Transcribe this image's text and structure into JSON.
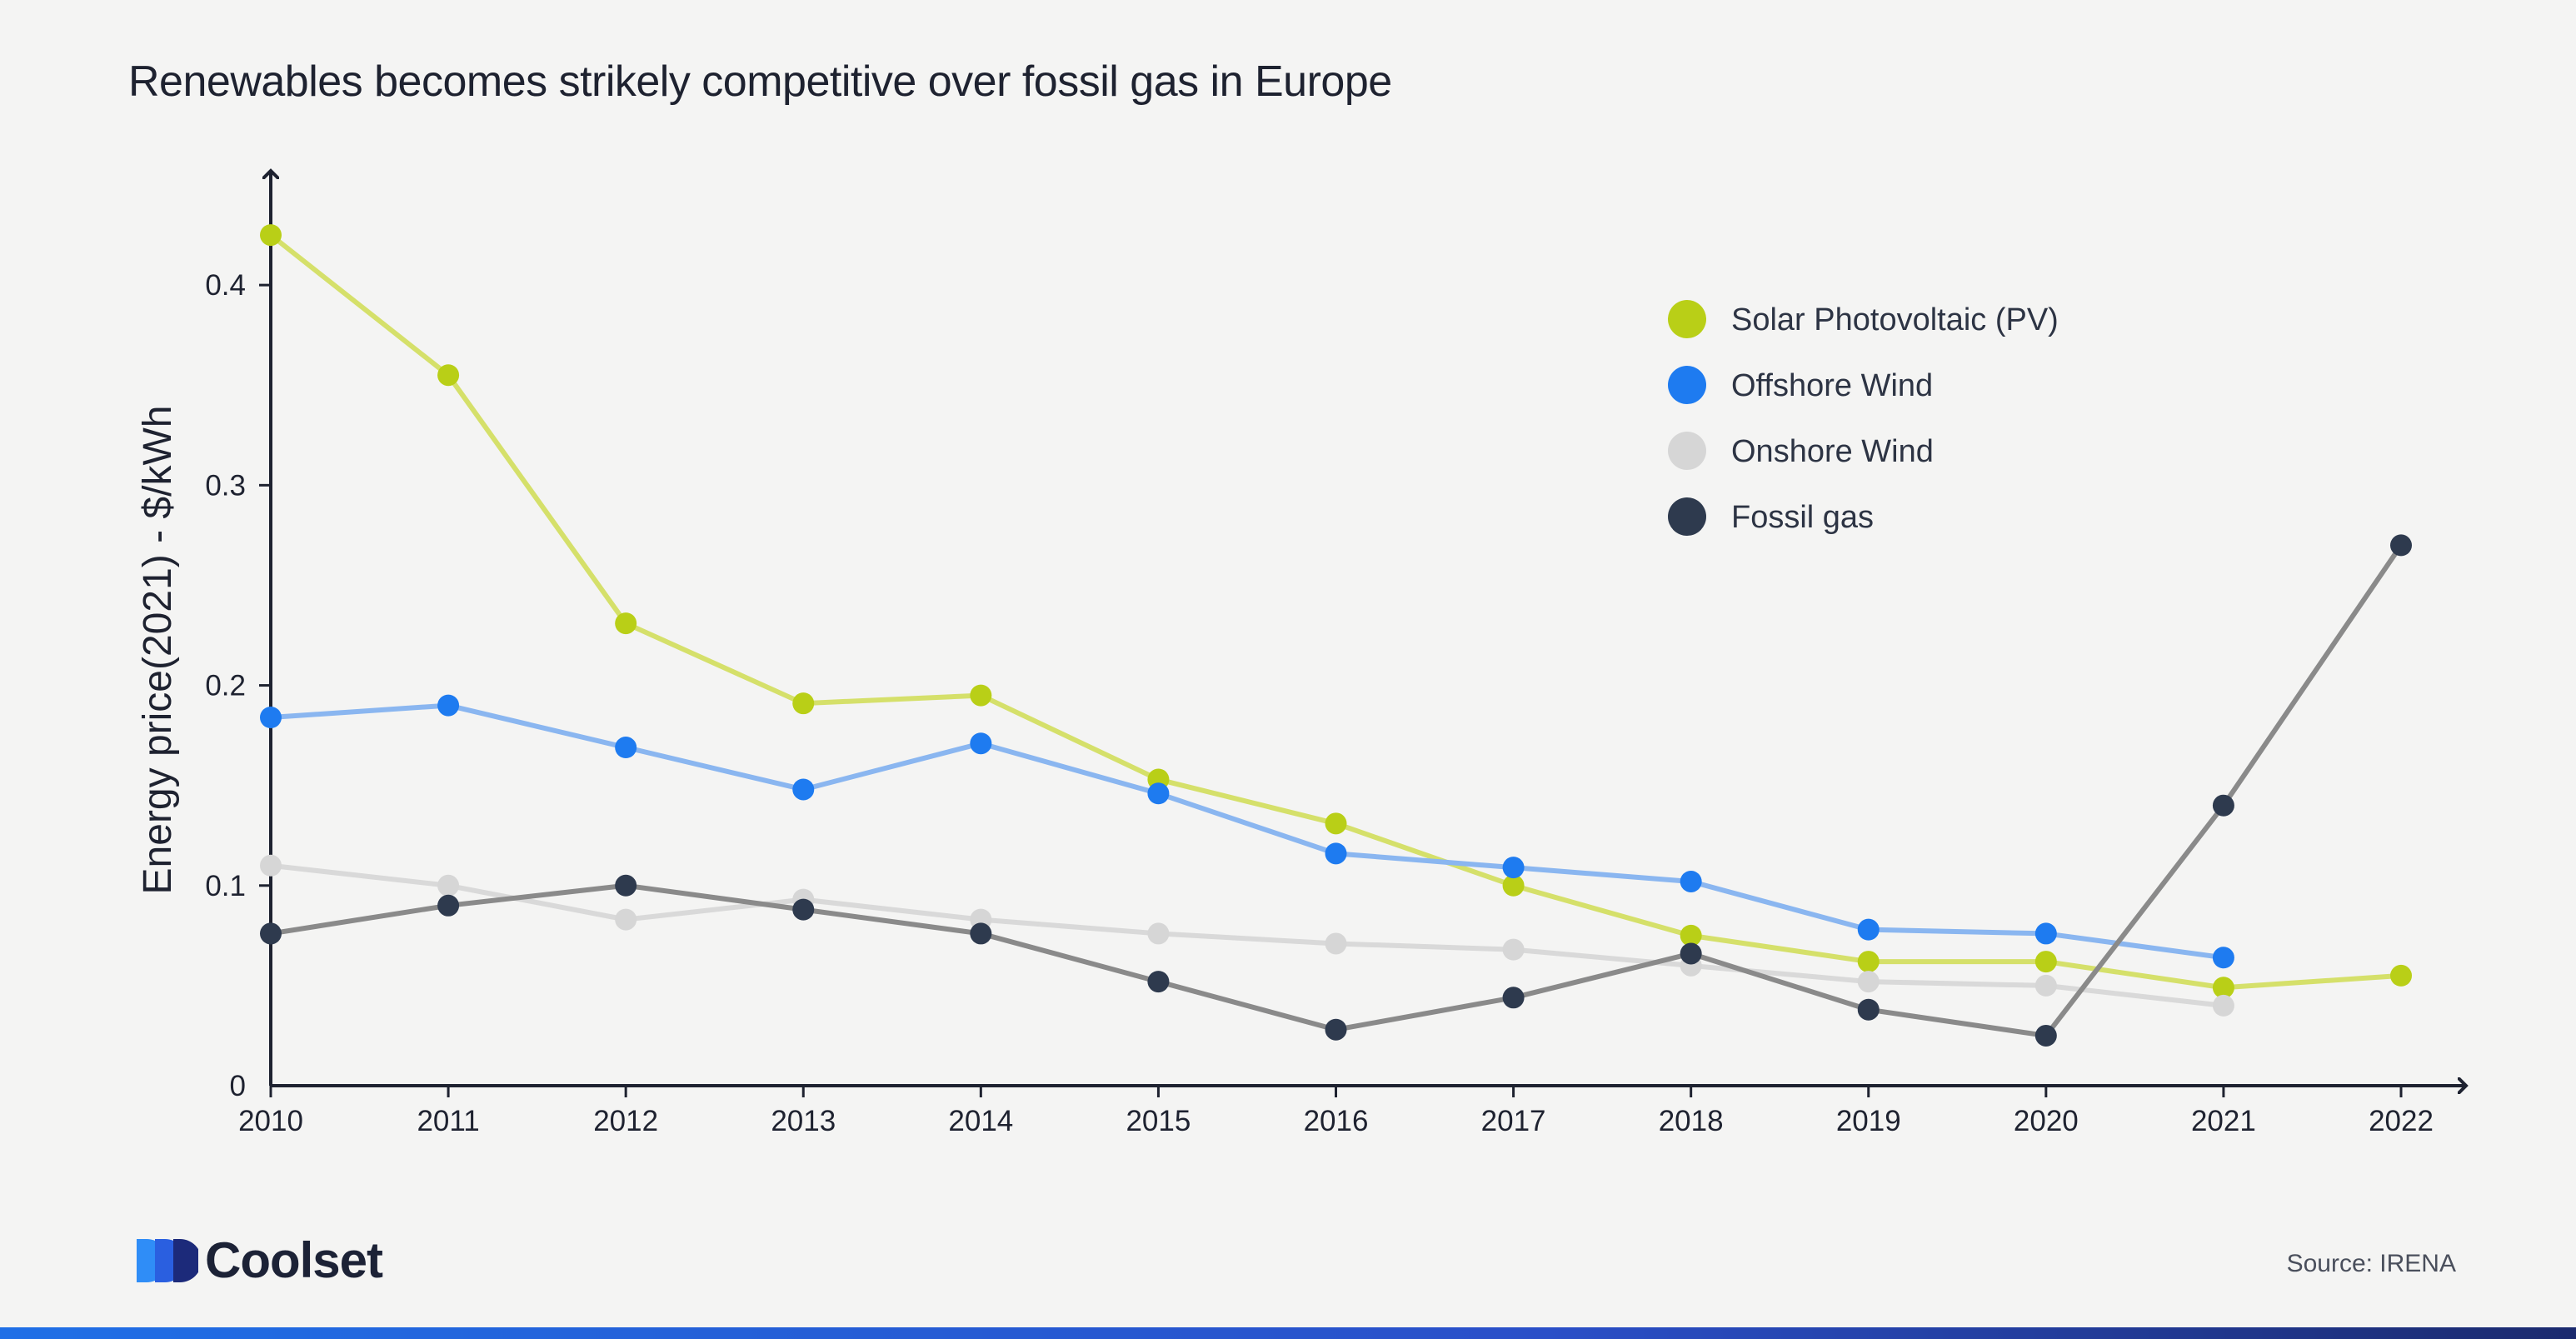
{
  "chart_data": {
    "type": "line",
    "title": "Renewables becomes strikely competitive over fossil gas in Europe",
    "ylabel": "Energy price(2021) - $/kWh",
    "xlabel": "",
    "x": [
      "2010",
      "2011",
      "2012",
      "2013",
      "2014",
      "2015",
      "2016",
      "2017",
      "2018",
      "2019",
      "2020",
      "2021",
      "2022"
    ],
    "ylim": [
      0,
      0.46
    ],
    "yticks": [
      0,
      0.1,
      0.2,
      0.3,
      0.4
    ],
    "ytick_labels": [
      "0",
      "0.1",
      "0.2",
      "0.3",
      "0.4"
    ],
    "grid": false,
    "legend": "top-right",
    "series": [
      {
        "name": "Solar Photovoltaic (PV)",
        "marker_color": "#b9cf17",
        "line_color": "#d5e06a",
        "values": [
          0.425,
          0.355,
          0.231,
          0.191,
          0.195,
          0.153,
          0.131,
          0.1,
          0.075,
          0.062,
          0.062,
          0.049,
          0.055
        ]
      },
      {
        "name": "Offshore Wind",
        "marker_color": "#1e7bf0",
        "line_color": "#8ab6f0",
        "values": [
          0.184,
          0.19,
          0.169,
          0.148,
          0.171,
          0.146,
          0.116,
          0.109,
          0.102,
          0.078,
          0.076,
          0.064,
          null
        ]
      },
      {
        "name": "Onshore Wind",
        "marker_color": "#d6d6d6",
        "line_color": "#d9d9d9",
        "values": [
          0.11,
          0.1,
          0.083,
          0.093,
          0.083,
          0.076,
          0.071,
          0.068,
          0.06,
          0.052,
          0.05,
          0.04,
          null
        ]
      },
      {
        "name": "Fossil gas",
        "marker_color": "#2e3a4e",
        "line_color": "#8a8a8a",
        "values": [
          0.076,
          0.09,
          0.1,
          0.088,
          0.076,
          0.052,
          0.028,
          0.044,
          0.066,
          0.038,
          0.025,
          0.14,
          0.27
        ]
      }
    ]
  },
  "brand": {
    "name": "Coolset"
  },
  "source": "Source: IRENA"
}
